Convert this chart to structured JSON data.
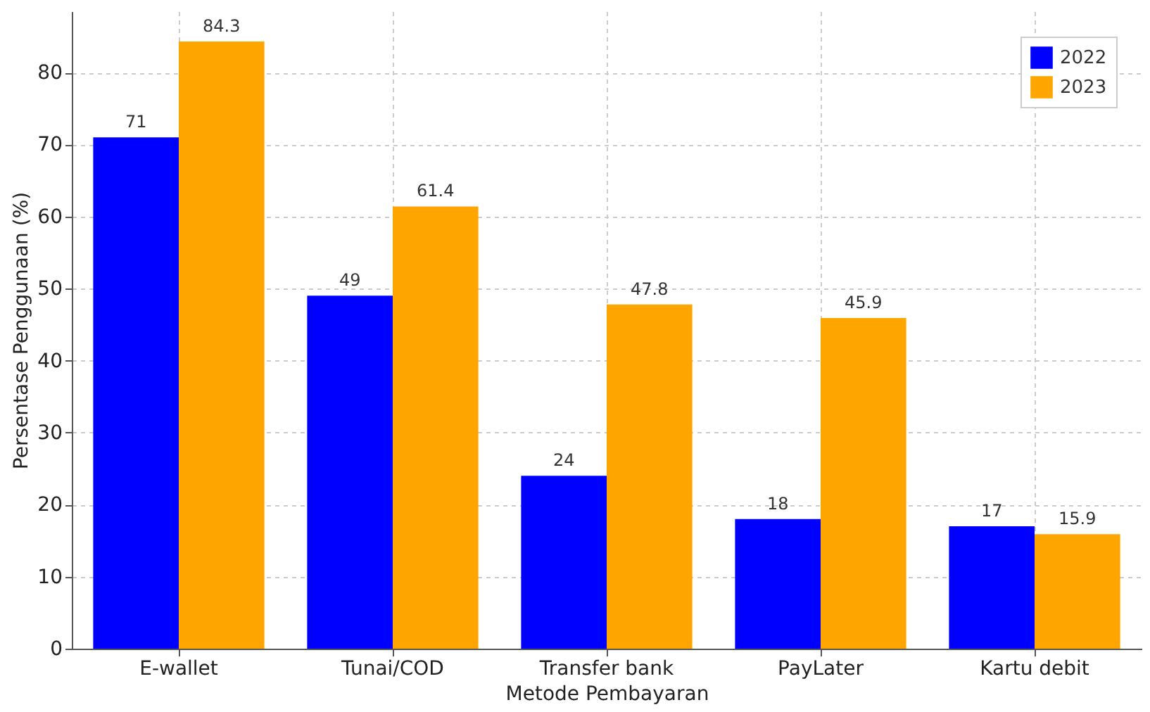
{
  "chart_data": {
    "type": "bar",
    "xlabel": "Metode Pembayaran",
    "ylabel": "Persentase Penggunaan (%)",
    "categories": [
      "E-wallet",
      "Tunai/COD",
      "Transfer bank",
      "PayLater",
      "Kartu debit"
    ],
    "series": [
      {
        "name": "2022",
        "color": "#0000ff",
        "values": [
          71,
          49,
          24,
          18,
          17
        ]
      },
      {
        "name": "2023",
        "color": "#ffa500",
        "values": [
          84.3,
          61.4,
          47.8,
          45.9,
          15.9
        ]
      }
    ],
    "ylim": [
      0,
      88.5
    ],
    "yticks": [
      0,
      10,
      20,
      30,
      40,
      50,
      60,
      70,
      80
    ],
    "grid": true,
    "legend": "top right",
    "data_labels": true
  }
}
